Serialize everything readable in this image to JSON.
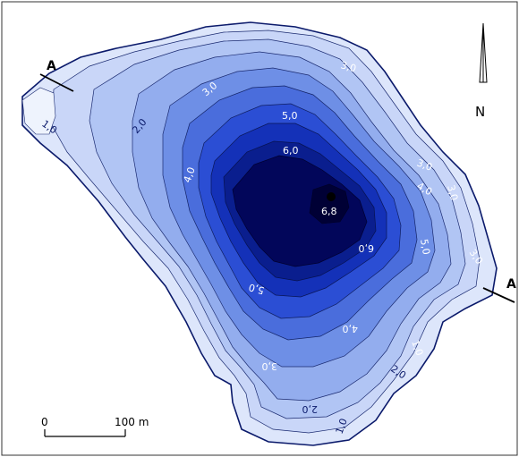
{
  "colors": {
    "land": "#ffffff",
    "shore": "#0b1a6b",
    "depth_shallow": "#dde6fb",
    "depth_deep": "#00003a"
  },
  "section_line": {
    "label_start": "A",
    "label_end": "A"
  },
  "north_arrow": {
    "label": "N"
  },
  "scale_bar": {
    "label_zero": "0",
    "label_end": "100 m"
  },
  "contour_labels": [
    "1,0",
    "2,0",
    "3,0",
    "4,0",
    "5,0",
    "6,0",
    "3,0",
    "3,0",
    "4,0",
    "3,0",
    "5,0",
    "3,0",
    "6,8",
    "6,0",
    "5,0",
    "4,0",
    "3,0",
    "1,0",
    "2,0",
    "2,0",
    "1,0"
  ],
  "deepest_point_value": "6,8"
}
